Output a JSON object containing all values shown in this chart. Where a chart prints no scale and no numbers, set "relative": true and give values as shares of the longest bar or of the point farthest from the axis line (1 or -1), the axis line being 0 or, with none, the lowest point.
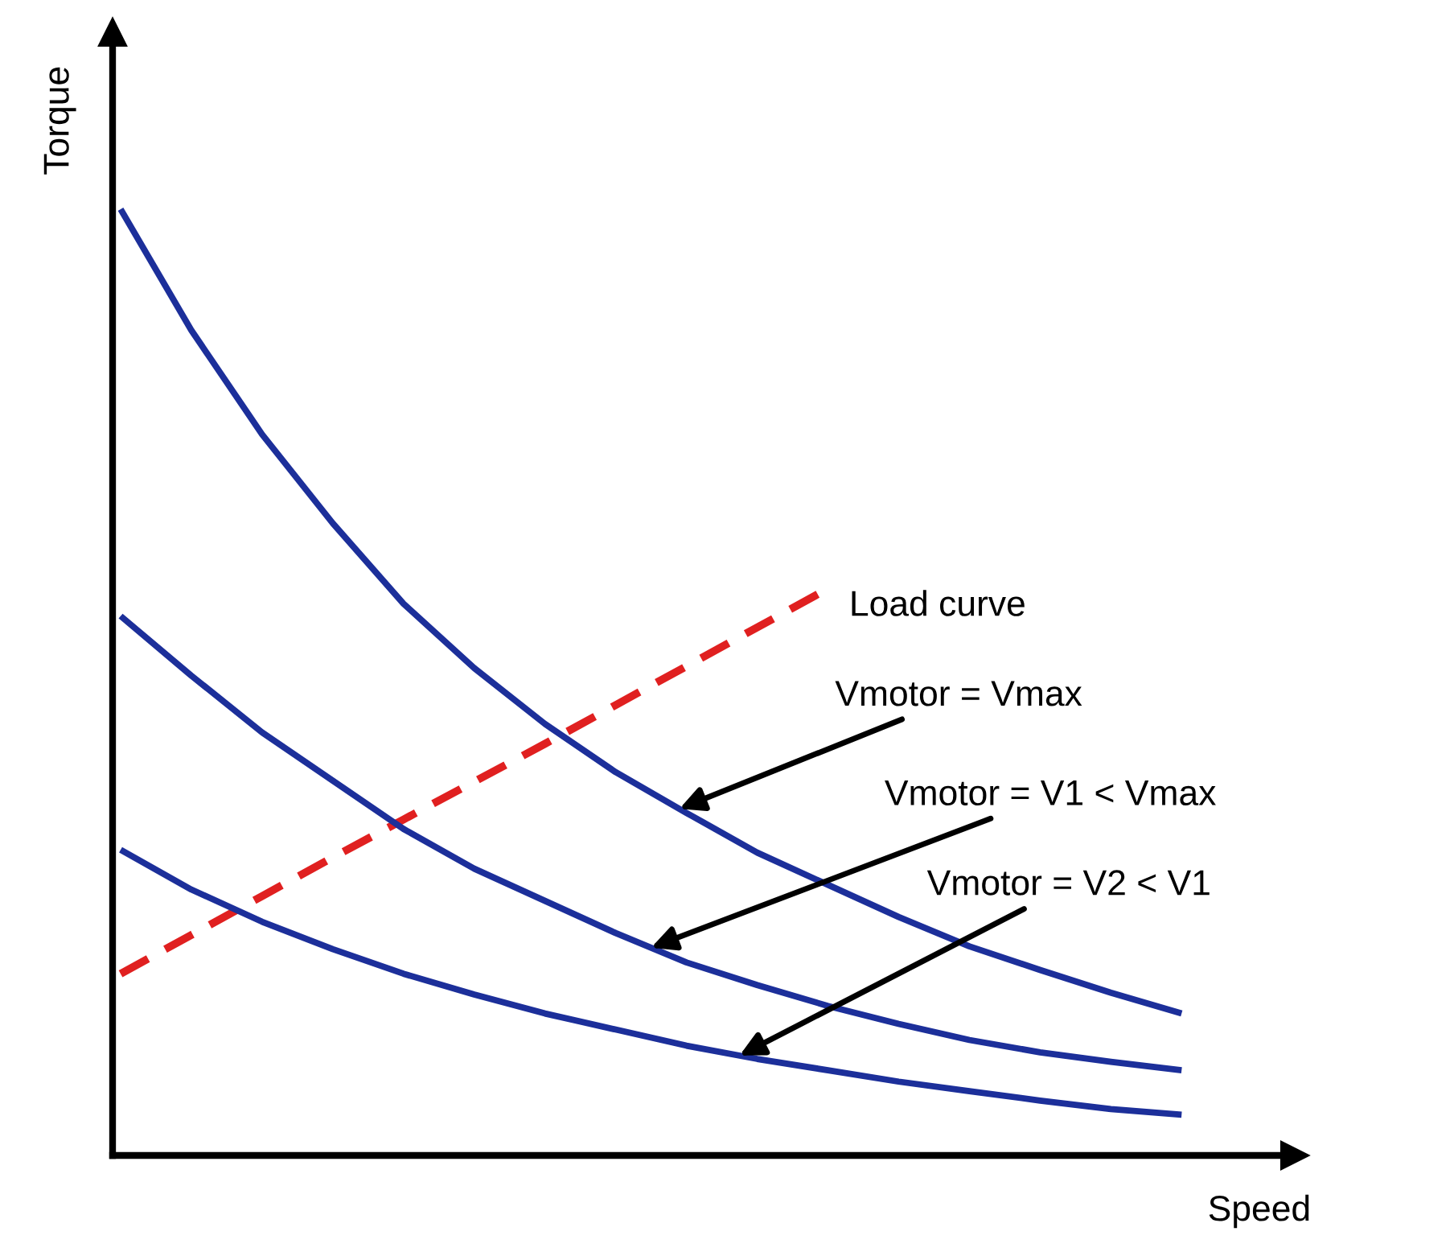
{
  "chart_data": {
    "type": "line",
    "relative": true,
    "xlabel": "Speed",
    "ylabel": "Torque",
    "marker": "none",
    "annotations": [
      "Vmotor = Vmax",
      "Vmotor = V1 < Vmax",
      "Vmotor = V2 < V1"
    ],
    "categories": [
      null,
      null,
      null,
      null,
      null,
      null,
      null,
      null,
      null,
      null,
      null,
      null,
      null,
      null,
      null,
      null
    ],
    "series": [
      {
        "name": "Load curve",
        "color": "#e02020",
        "line_style": "dashed",
        "values": [
          0.192,
          0.233,
          0.274,
          0.315,
          0.355,
          0.395,
          0.435,
          0.476,
          0.517,
          0.558,
          0.599,
          null,
          null,
          null,
          null,
          null
        ]
      },
      {
        "color": "#1c2f9a",
        "line_style": "solid",
        "values": [
          1.0,
          0.872,
          0.762,
          0.668,
          0.583,
          0.515,
          0.456,
          0.405,
          0.362,
          0.32,
          0.286,
          0.252,
          0.221,
          0.196,
          0.172,
          0.15
        ]
      },
      {
        "color": "#1c2f9a",
        "line_style": "solid",
        "values": [
          0.57,
          0.507,
          0.447,
          0.396,
          0.345,
          0.303,
          0.269,
          0.235,
          0.204,
          0.18,
          0.158,
          0.139,
          0.122,
          0.109,
          0.099,
          0.09
        ]
      },
      {
        "color": "#1c2f9a",
        "line_style": "solid",
        "values": [
          0.323,
          0.281,
          0.247,
          0.218,
          0.192,
          0.17,
          0.15,
          0.133,
          0.116,
          0.102,
          0.09,
          0.078,
          0.068,
          0.058,
          0.049,
          0.043
        ]
      }
    ]
  }
}
